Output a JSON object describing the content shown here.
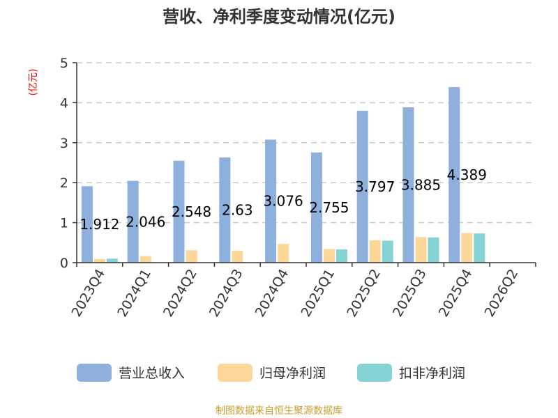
{
  "chart_data": {
    "type": "bar",
    "title": "营收、净利季度变动情况(亿元)",
    "unit_label": "(亿元)",
    "categories": [
      "2023Q4",
      "2024Q1",
      "2024Q2",
      "2024Q3",
      "2024Q4",
      "2025Q1",
      "2025Q2",
      "2025Q3",
      "2025Q4",
      "2026Q2"
    ],
    "series": [
      {
        "name": "营业总收入",
        "color": "#8eb0dd",
        "values": [
          1.912,
          2.046,
          2.548,
          2.63,
          3.076,
          2.755,
          3.797,
          3.885,
          4.389,
          null
        ]
      },
      {
        "name": "归母净利润",
        "color": "#fdd79a",
        "values": [
          0.09,
          0.16,
          0.31,
          0.3,
          0.47,
          0.34,
          0.56,
          0.64,
          0.74,
          null
        ]
      },
      {
        "name": "扣非净利润",
        "color": "#86d3d6",
        "values": [
          0.1,
          null,
          null,
          null,
          null,
          0.33,
          0.55,
          0.63,
          0.73,
          null
        ]
      }
    ],
    "data_labels": [
      "1.912",
      "2.046",
      "2.548",
      "2.63",
      "3.076",
      "2.755",
      "3.797",
      "3.885",
      "4.389",
      ""
    ],
    "ylim": [
      0,
      5
    ],
    "yticks": [
      0,
      1,
      2,
      3,
      4,
      5
    ],
    "grid": true,
    "legend_position": "bottom"
  },
  "footer": {
    "source": "制图数据来自恒生聚源数据库"
  }
}
